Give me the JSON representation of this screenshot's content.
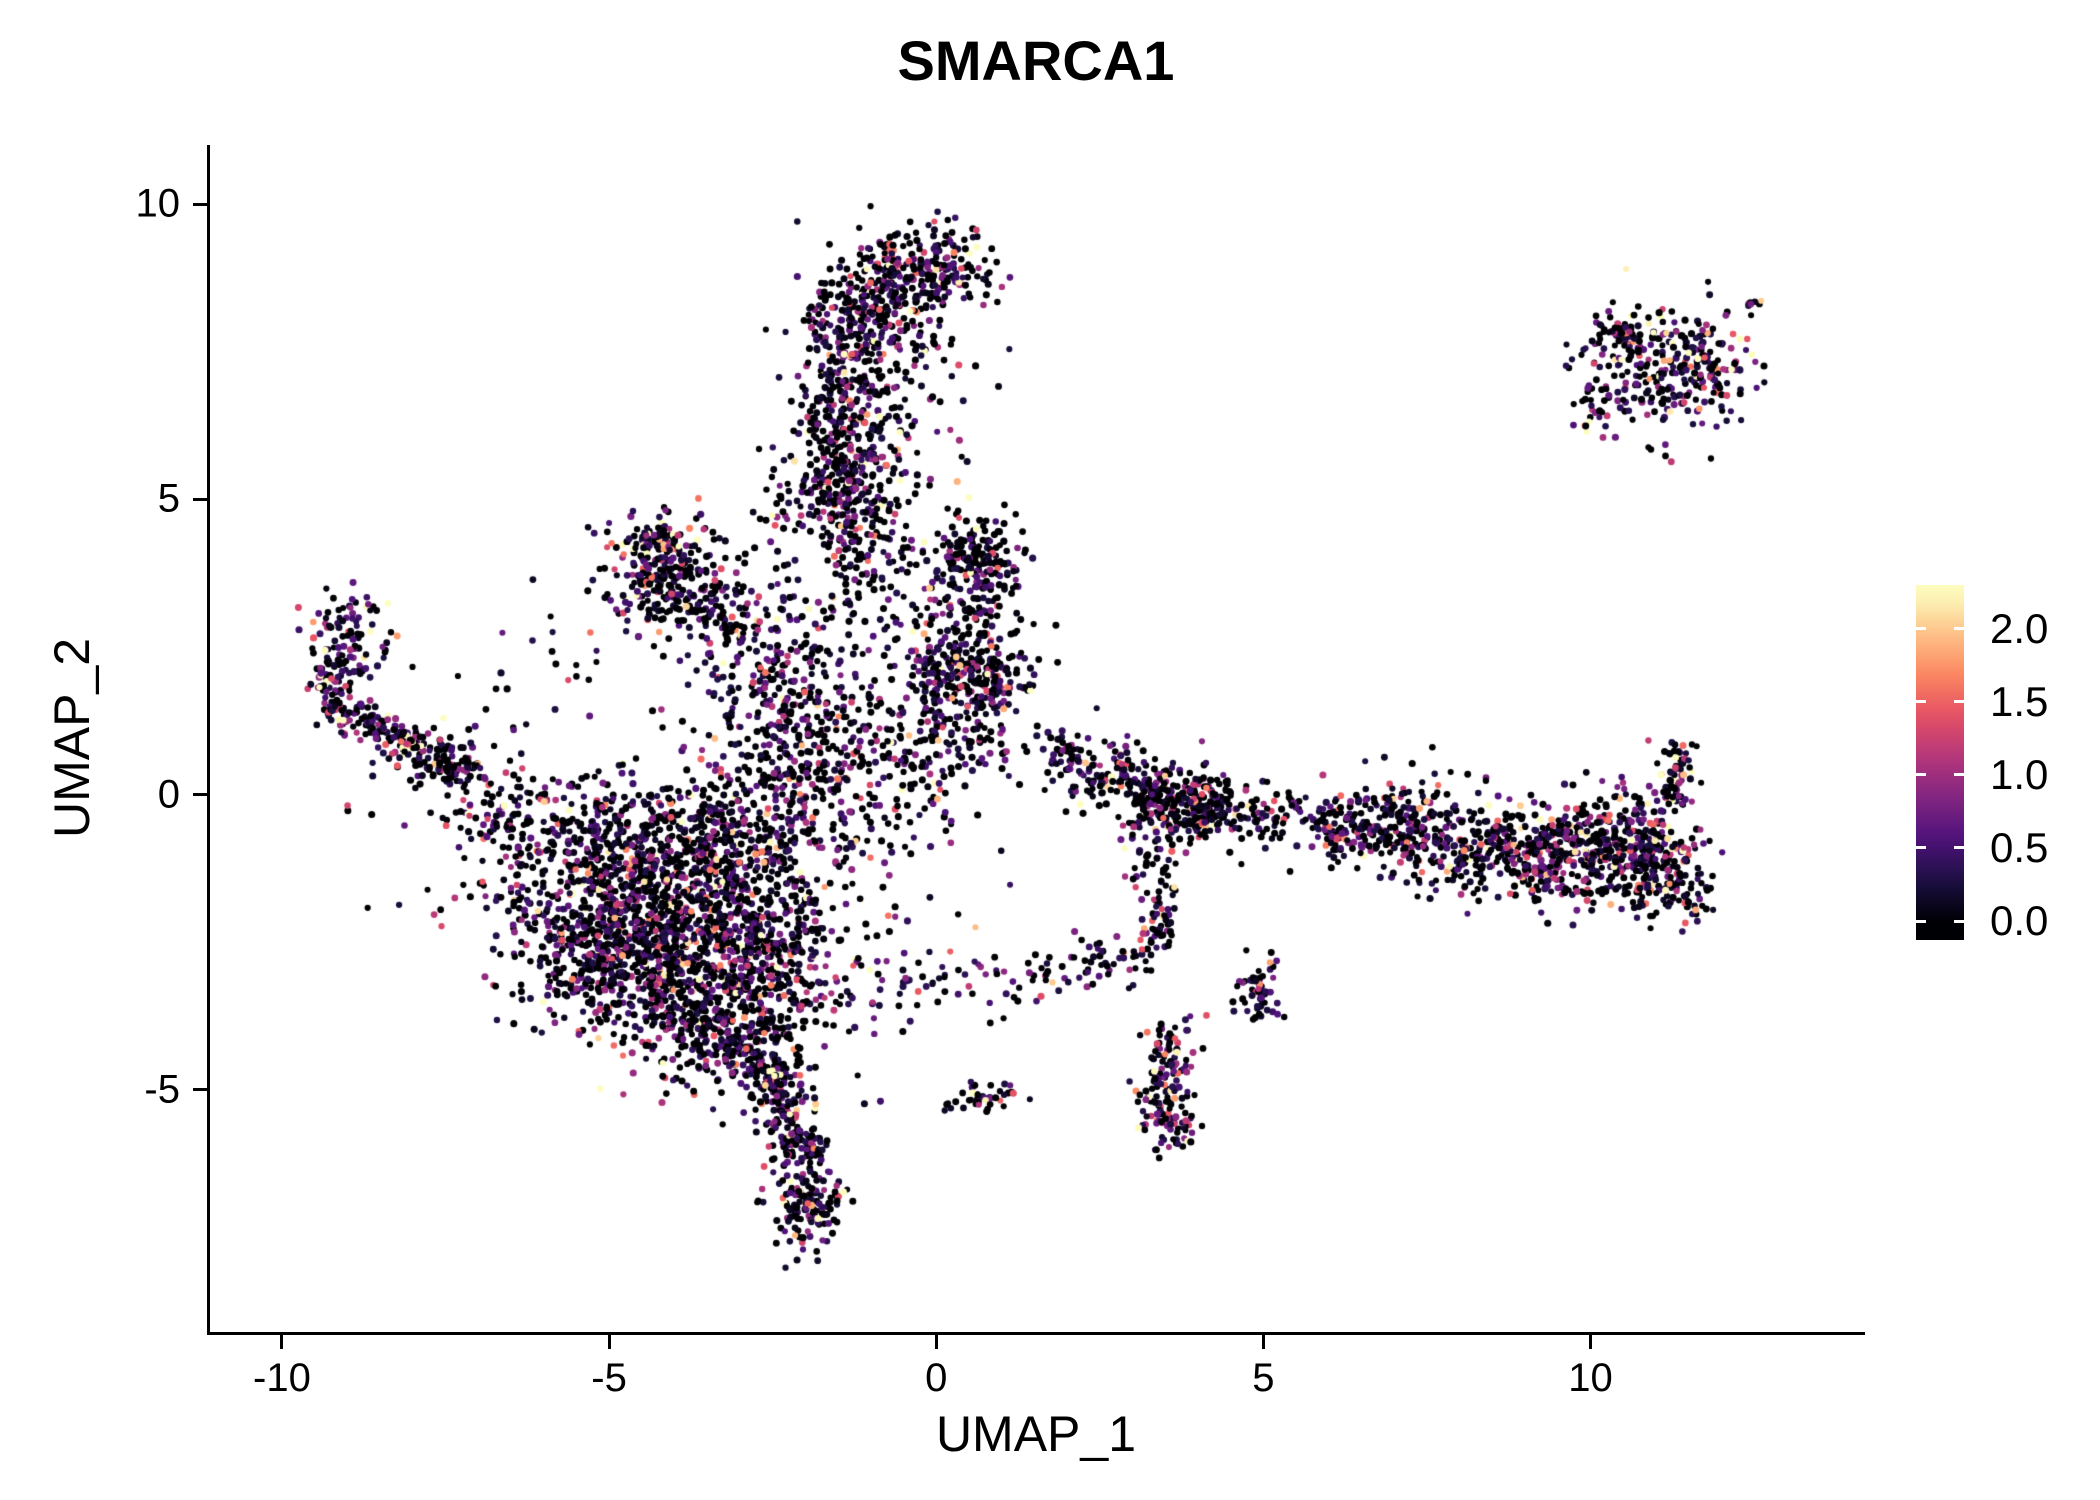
{
  "chart_data": {
    "type": "scatter",
    "title": "SMARCA1",
    "xlabel": "UMAP_1",
    "ylabel": "UMAP_2",
    "xlim": [
      -11.1,
      14.15
    ],
    "ylim": [
      -9.1,
      11.0
    ],
    "x_ticks": [
      -10,
      -5,
      0,
      5,
      10
    ],
    "x_tick_labels": [
      "-10",
      "-5",
      "0",
      "5",
      "10"
    ],
    "y_ticks": [
      -5,
      0,
      5,
      10
    ],
    "y_tick_labels": [
      "-5",
      "0",
      "5",
      "10"
    ],
    "grid": false,
    "colors": {
      "background": "#ffffff",
      "text": "#000000",
      "axis": "#000000"
    },
    "legend": {
      "position": "right",
      "ticks": [
        0.0,
        0.5,
        1.0,
        1.5,
        2.0
      ],
      "tick_labels": [
        "0.0",
        "0.5",
        "1.0",
        "1.5",
        "2.0"
      ],
      "vmin": -0.13,
      "vmax": 2.3,
      "colormap": "magma",
      "stops": [
        {
          "t": 0.0,
          "c": "#000004"
        },
        {
          "t": 0.125,
          "c": "#1c1044"
        },
        {
          "t": 0.25,
          "c": "#4f127b"
        },
        {
          "t": 0.375,
          "c": "#812581"
        },
        {
          "t": 0.5,
          "c": "#b5367a"
        },
        {
          "t": 0.625,
          "c": "#e55064"
        },
        {
          "t": 0.75,
          "c": "#fb8761"
        },
        {
          "t": 0.875,
          "c": "#fec287"
        },
        {
          "t": 1.0,
          "c": "#fcfdbf"
        }
      ]
    },
    "points": {
      "seed": 20240601,
      "radius": 3.0,
      "clamp_max": 2.25,
      "default_p0": 0.42,
      "default_vm": 0.62,
      "clusters": [
        {
          "kind": "blob",
          "cx": -4.6,
          "cy": -1.3,
          "sx": 1.25,
          "sy": 0.75,
          "n": 650
        },
        {
          "kind": "blob",
          "cx": -3.8,
          "cy": -2.9,
          "sx": 0.95,
          "sy": 0.85,
          "n": 650
        },
        {
          "kind": "blob",
          "cx": -5.0,
          "cy": -2.6,
          "sx": 0.75,
          "sy": 0.65,
          "n": 350
        },
        {
          "kind": "blob",
          "cx": -2.9,
          "cy": -1.7,
          "sx": 0.75,
          "sy": 0.75,
          "n": 300
        },
        {
          "kind": "blob",
          "cx": -4.2,
          "cy": -0.45,
          "sx": 1.5,
          "sy": 0.4,
          "n": 250
        },
        {
          "kind": "blob",
          "cx": -3.4,
          "cy": -4.1,
          "sx": 0.6,
          "sy": 0.5,
          "n": 200
        },
        {
          "kind": "blob",
          "cx": -2.6,
          "cy": -3.2,
          "sx": 0.5,
          "sy": 0.7,
          "n": 180
        },
        {
          "kind": "line",
          "x1": -2.6,
          "y1": -4.4,
          "x2": -2.0,
          "y2": -6.2,
          "sl": 0.22,
          "n": 220
        },
        {
          "kind": "blob",
          "cx": -2.0,
          "cy": -6.9,
          "sx": 0.28,
          "sy": 0.42,
          "n": 160,
          "p0": 0.35,
          "vm": 0.7
        },
        {
          "kind": "line",
          "x1": -9.35,
          "y1": 1.55,
          "x2": -7.1,
          "y2": 0.35,
          "sl": 0.16,
          "n": 190,
          "p0": 0.35,
          "vm": 0.7
        },
        {
          "kind": "blob",
          "cx": -8.95,
          "cy": 2.7,
          "sx": 0.3,
          "sy": 0.5,
          "n": 90,
          "p0": 0.35,
          "vm": 0.7
        },
        {
          "kind": "blob",
          "cx": -7.55,
          "cy": 0.55,
          "sx": 0.55,
          "sy": 0.3,
          "n": 60
        },
        {
          "kind": "blob",
          "cx": -9.2,
          "cy": 1.9,
          "sx": 0.2,
          "sy": 0.3,
          "n": 60,
          "p0": 0.35,
          "vm": 0.7
        },
        {
          "kind": "blob",
          "cx": -2.3,
          "cy": 0.6,
          "sx": 0.7,
          "sy": 0.8,
          "n": 220
        },
        {
          "kind": "blob",
          "cx": -2.6,
          "cy": 1.9,
          "sx": 0.6,
          "sy": 0.7,
          "n": 130
        },
        {
          "kind": "blob",
          "cx": -1.4,
          "cy": 1.4,
          "sx": 0.8,
          "sy": 0.9,
          "n": 150
        },
        {
          "kind": "blob",
          "cx": -0.5,
          "cy": 0.3,
          "sx": 0.7,
          "sy": 0.5,
          "n": 90
        },
        {
          "kind": "blob",
          "cx": -4.35,
          "cy": 4.25,
          "sx": 0.28,
          "sy": 0.22,
          "n": 90,
          "p0": 0.3,
          "vm": 0.8
        },
        {
          "kind": "blob",
          "cx": -3.9,
          "cy": 3.5,
          "sx": 0.6,
          "sy": 0.55,
          "n": 220
        },
        {
          "kind": "line",
          "x1": -4.4,
          "y1": 4.3,
          "x2": -2.9,
          "y2": 2.6,
          "sl": 0.3,
          "n": 80
        },
        {
          "kind": "blob",
          "cx": -1.35,
          "cy": 6.6,
          "sx": 0.42,
          "sy": 1.15,
          "n": 420
        },
        {
          "kind": "blob",
          "cx": -1.5,
          "cy": 5.1,
          "sx": 0.5,
          "sy": 0.45,
          "n": 170
        },
        {
          "kind": "blob",
          "cx": -0.2,
          "cy": 8.9,
          "sx": 0.55,
          "sy": 0.33,
          "n": 240,
          "p0": 0.38,
          "vm": 0.68
        },
        {
          "kind": "blob",
          "cx": -1.0,
          "cy": 8.2,
          "sx": 0.45,
          "sy": 0.4,
          "n": 120
        },
        {
          "kind": "blob",
          "cx": -0.4,
          "cy": 7.2,
          "sx": 0.5,
          "sy": 0.9,
          "n": 90
        },
        {
          "kind": "blob",
          "cx": -1.1,
          "cy": 3.9,
          "sx": 0.5,
          "sy": 0.5,
          "n": 90
        },
        {
          "kind": "blob",
          "cx": 0.6,
          "cy": 4.0,
          "sx": 0.33,
          "sy": 0.38,
          "n": 170
        },
        {
          "kind": "blob",
          "cx": 0.55,
          "cy": 1.9,
          "sx": 0.48,
          "sy": 0.38,
          "n": 260
        },
        {
          "kind": "blob",
          "cx": 0.35,
          "cy": 3.0,
          "sx": 0.45,
          "sy": 0.5,
          "n": 110
        },
        {
          "kind": "blob",
          "cx": 0.2,
          "cy": 0.9,
          "sx": 0.5,
          "sy": 0.4,
          "n": 70
        },
        {
          "kind": "blob",
          "cx": 1.95,
          "cy": 0.75,
          "sx": 0.2,
          "sy": 0.15,
          "n": 35
        },
        {
          "kind": "blob",
          "cx": 2.6,
          "cy": 0.35,
          "sx": 0.45,
          "sy": 0.28,
          "n": 120
        },
        {
          "kind": "line",
          "x1": 3.1,
          "y1": 0.1,
          "x2": 4.4,
          "y2": -0.25,
          "sl": 0.25,
          "n": 200
        },
        {
          "kind": "blob",
          "cx": 5.0,
          "cy": -0.3,
          "sx": 0.7,
          "sy": 0.28,
          "n": 130
        },
        {
          "kind": "line",
          "x1": 5.8,
          "y1": -0.5,
          "x2": 7.5,
          "y2": -0.75,
          "sl": 0.27,
          "n": 200
        },
        {
          "kind": "blob",
          "cx": 8.2,
          "cy": -0.85,
          "sx": 0.7,
          "sy": 0.4,
          "n": 230
        },
        {
          "kind": "blob",
          "cx": 9.5,
          "cy": -1.0,
          "sx": 0.7,
          "sy": 0.45,
          "n": 260,
          "p0": 0.38,
          "vm": 0.68
        },
        {
          "kind": "blob",
          "cx": 10.6,
          "cy": -0.85,
          "sx": 0.6,
          "sy": 0.5,
          "n": 300,
          "p0": 0.35,
          "vm": 0.72
        },
        {
          "kind": "blob",
          "cx": 11.25,
          "cy": -1.55,
          "sx": 0.35,
          "sy": 0.35,
          "n": 90,
          "p0": 0.35,
          "vm": 0.72
        },
        {
          "kind": "line",
          "x1": 11.25,
          "y1": -0.2,
          "x2": 11.35,
          "y2": 0.95,
          "sl": 0.16,
          "n": 70,
          "p0": 0.35,
          "vm": 0.72
        },
        {
          "kind": "blob",
          "cx": 7.0,
          "cy": -0.1,
          "sx": 0.5,
          "sy": 0.35,
          "n": 40
        },
        {
          "kind": "line",
          "x1": 3.25,
          "y1": -1.1,
          "x2": 3.55,
          "y2": -2.6,
          "sl": 0.18,
          "n": 70
        },
        {
          "kind": "blob",
          "cx": 3.5,
          "cy": -4.6,
          "sx": 0.22,
          "sy": 0.5,
          "n": 90,
          "p0": 0.35,
          "vm": 0.7
        },
        {
          "kind": "blob",
          "cx": 3.55,
          "cy": -5.5,
          "sx": 0.2,
          "sy": 0.35,
          "n": 80,
          "p0": 0.35,
          "vm": 0.7
        },
        {
          "kind": "blob",
          "cx": 4.95,
          "cy": -3.3,
          "sx": 0.18,
          "sy": 0.28,
          "n": 55
        },
        {
          "kind": "blob",
          "cx": 0.8,
          "cy": -5.15,
          "sx": 0.28,
          "sy": 0.14,
          "n": 40
        },
        {
          "kind": "blob",
          "cx": 1.8,
          "cy": -3.05,
          "sx": 0.6,
          "sy": 0.25,
          "n": 45
        },
        {
          "kind": "blob",
          "cx": 2.75,
          "cy": -2.75,
          "sx": 0.35,
          "sy": 0.2,
          "n": 30
        },
        {
          "kind": "blob",
          "cx": 11.25,
          "cy": 7.2,
          "sx": 0.62,
          "sy": 0.55,
          "n": 300,
          "p0": 0.33,
          "vm": 0.75
        },
        {
          "kind": "blob",
          "cx": 10.45,
          "cy": 7.75,
          "sx": 0.25,
          "sy": 0.2,
          "n": 50,
          "p0": 0.33,
          "vm": 0.75
        },
        {
          "kind": "blob",
          "cx": 12.5,
          "cy": 8.3,
          "sx": 0.12,
          "sy": 0.12,
          "n": 8,
          "p0": 0.3,
          "vm": 0.8
        },
        {
          "kind": "blob",
          "cx": 10.1,
          "cy": 6.4,
          "sx": 0.2,
          "sy": 0.2,
          "n": 20,
          "p0": 0.33,
          "vm": 0.75
        },
        {
          "kind": "blob",
          "cx": -6.9,
          "cy": -0.2,
          "sx": 0.4,
          "sy": 0.3,
          "n": 50
        },
        {
          "kind": "blob",
          "cx": -1.6,
          "cy": 3.0,
          "sx": 0.9,
          "sy": 0.6,
          "n": 40
        },
        {
          "kind": "blob",
          "cx": -0.9,
          "cy": -1.5,
          "sx": 0.7,
          "sy": 0.9,
          "n": 40
        },
        {
          "kind": "blob",
          "cx": -1.3,
          "cy": -3.6,
          "sx": 0.5,
          "sy": 0.6,
          "n": 40
        },
        {
          "kind": "blob",
          "cx": 0.3,
          "cy": -3.1,
          "sx": 0.5,
          "sy": 0.3,
          "n": 35
        },
        {
          "kind": "blob",
          "cx": 3.35,
          "cy": -0.5,
          "sx": 0.3,
          "sy": 0.3,
          "n": 60
        },
        {
          "kind": "blob",
          "cx": -5.9,
          "cy": 2.3,
          "sx": 0.5,
          "sy": 0.6,
          "n": 14
        },
        {
          "kind": "blob",
          "cx": -6.6,
          "cy": 1.0,
          "sx": 0.4,
          "sy": 0.4,
          "n": 12
        }
      ]
    }
  }
}
